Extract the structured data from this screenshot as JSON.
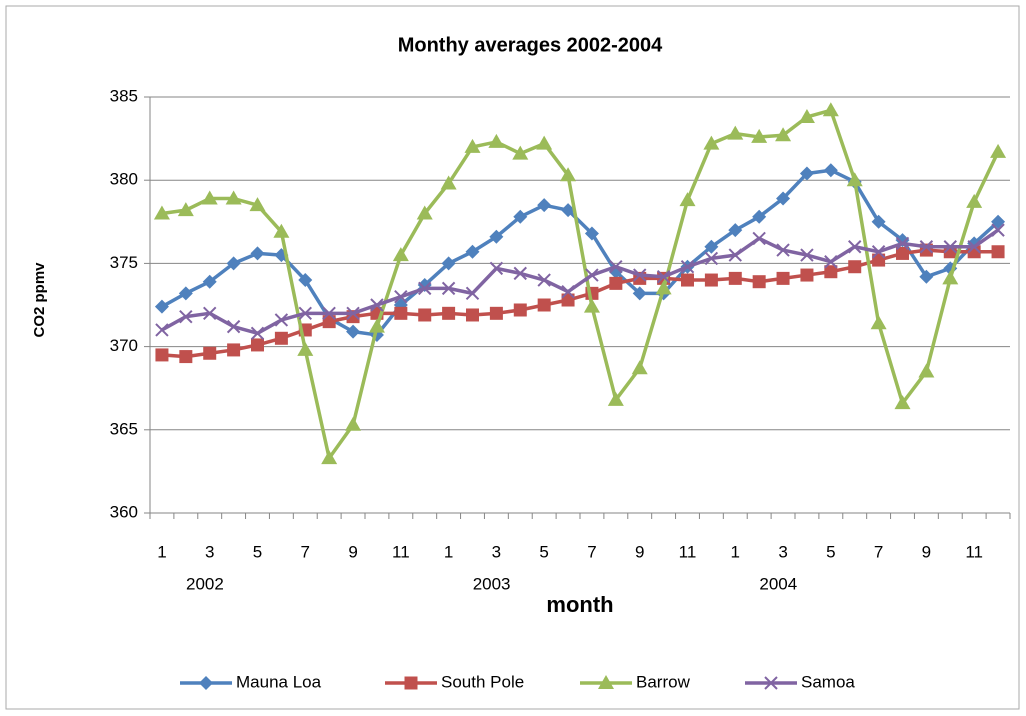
{
  "chart_data": {
    "type": "line",
    "title": "Monthy averages 2002-2004",
    "xlabel": "month",
    "ylabel": "CO2 ppmv",
    "categories": [
      "1",
      null,
      "3",
      null,
      "5",
      null,
      "7",
      null,
      "9",
      null,
      "11",
      null,
      "1",
      null,
      "3",
      null,
      "5",
      null,
      "7",
      null,
      "9",
      null,
      "11",
      null,
      "1",
      null,
      "3",
      null,
      "5",
      null,
      "7",
      null,
      "9",
      null,
      "11",
      null
    ],
    "category_groups": [
      "2002",
      "2003",
      "2004"
    ],
    "ylim": [
      360,
      385
    ],
    "yticks": [
      360,
      365,
      370,
      375,
      380,
      385
    ],
    "grid": true,
    "legend": "bottom",
    "series": [
      {
        "name": "Mauna Loa",
        "color": "#4F81BD",
        "marker": "diamond",
        "values": [
          372.4,
          373.2,
          373.9,
          375.0,
          375.6,
          375.5,
          374.0,
          371.7,
          370.9,
          370.7,
          372.5,
          373.7,
          375.0,
          375.7,
          376.6,
          377.8,
          378.5,
          378.2,
          376.8,
          374.5,
          373.2,
          373.2,
          374.8,
          376.0,
          377.0,
          377.8,
          378.9,
          380.4,
          380.6,
          379.9,
          377.5,
          376.4,
          374.2,
          374.7,
          376.2,
          377.5
        ]
      },
      {
        "name": "South Pole",
        "color": "#C0504D",
        "marker": "square",
        "values": [
          369.5,
          369.4,
          369.6,
          369.8,
          370.1,
          370.5,
          371.0,
          371.5,
          371.8,
          372.0,
          372.0,
          371.9,
          372.0,
          371.9,
          372.0,
          372.2,
          372.5,
          372.8,
          373.2,
          373.8,
          374.1,
          374.1,
          374.0,
          374.0,
          374.1,
          373.9,
          374.1,
          374.3,
          374.5,
          374.8,
          375.2,
          375.6,
          375.8,
          375.7,
          375.7,
          375.7
        ]
      },
      {
        "name": "Barrow",
        "color": "#9BBB59",
        "marker": "triangle",
        "values": [
          378.0,
          378.2,
          378.9,
          378.9,
          378.5,
          376.9,
          369.8,
          363.3,
          365.3,
          371.2,
          375.5,
          378.0,
          379.8,
          382.0,
          382.3,
          381.6,
          382.2,
          380.3,
          372.4,
          366.8,
          368.7,
          373.5,
          378.8,
          382.2,
          382.8,
          382.6,
          382.7,
          383.8,
          384.2,
          380.0,
          371.4,
          366.6,
          368.5,
          374.1,
          378.7,
          381.7
        ]
      },
      {
        "name": "Samoa",
        "color": "#8064A2",
        "marker": "x",
        "values": [
          371.0,
          371.8,
          372.0,
          371.2,
          370.8,
          371.6,
          372.0,
          372.0,
          372.0,
          372.5,
          373.0,
          373.5,
          373.5,
          373.2,
          374.7,
          374.4,
          374.0,
          373.3,
          374.3,
          374.8,
          374.3,
          374.2,
          374.8,
          375.3,
          375.5,
          376.5,
          375.8,
          375.5,
          375.1,
          376.0,
          375.7,
          376.2,
          376.0,
          376.0,
          376.0,
          377.0
        ]
      }
    ]
  }
}
